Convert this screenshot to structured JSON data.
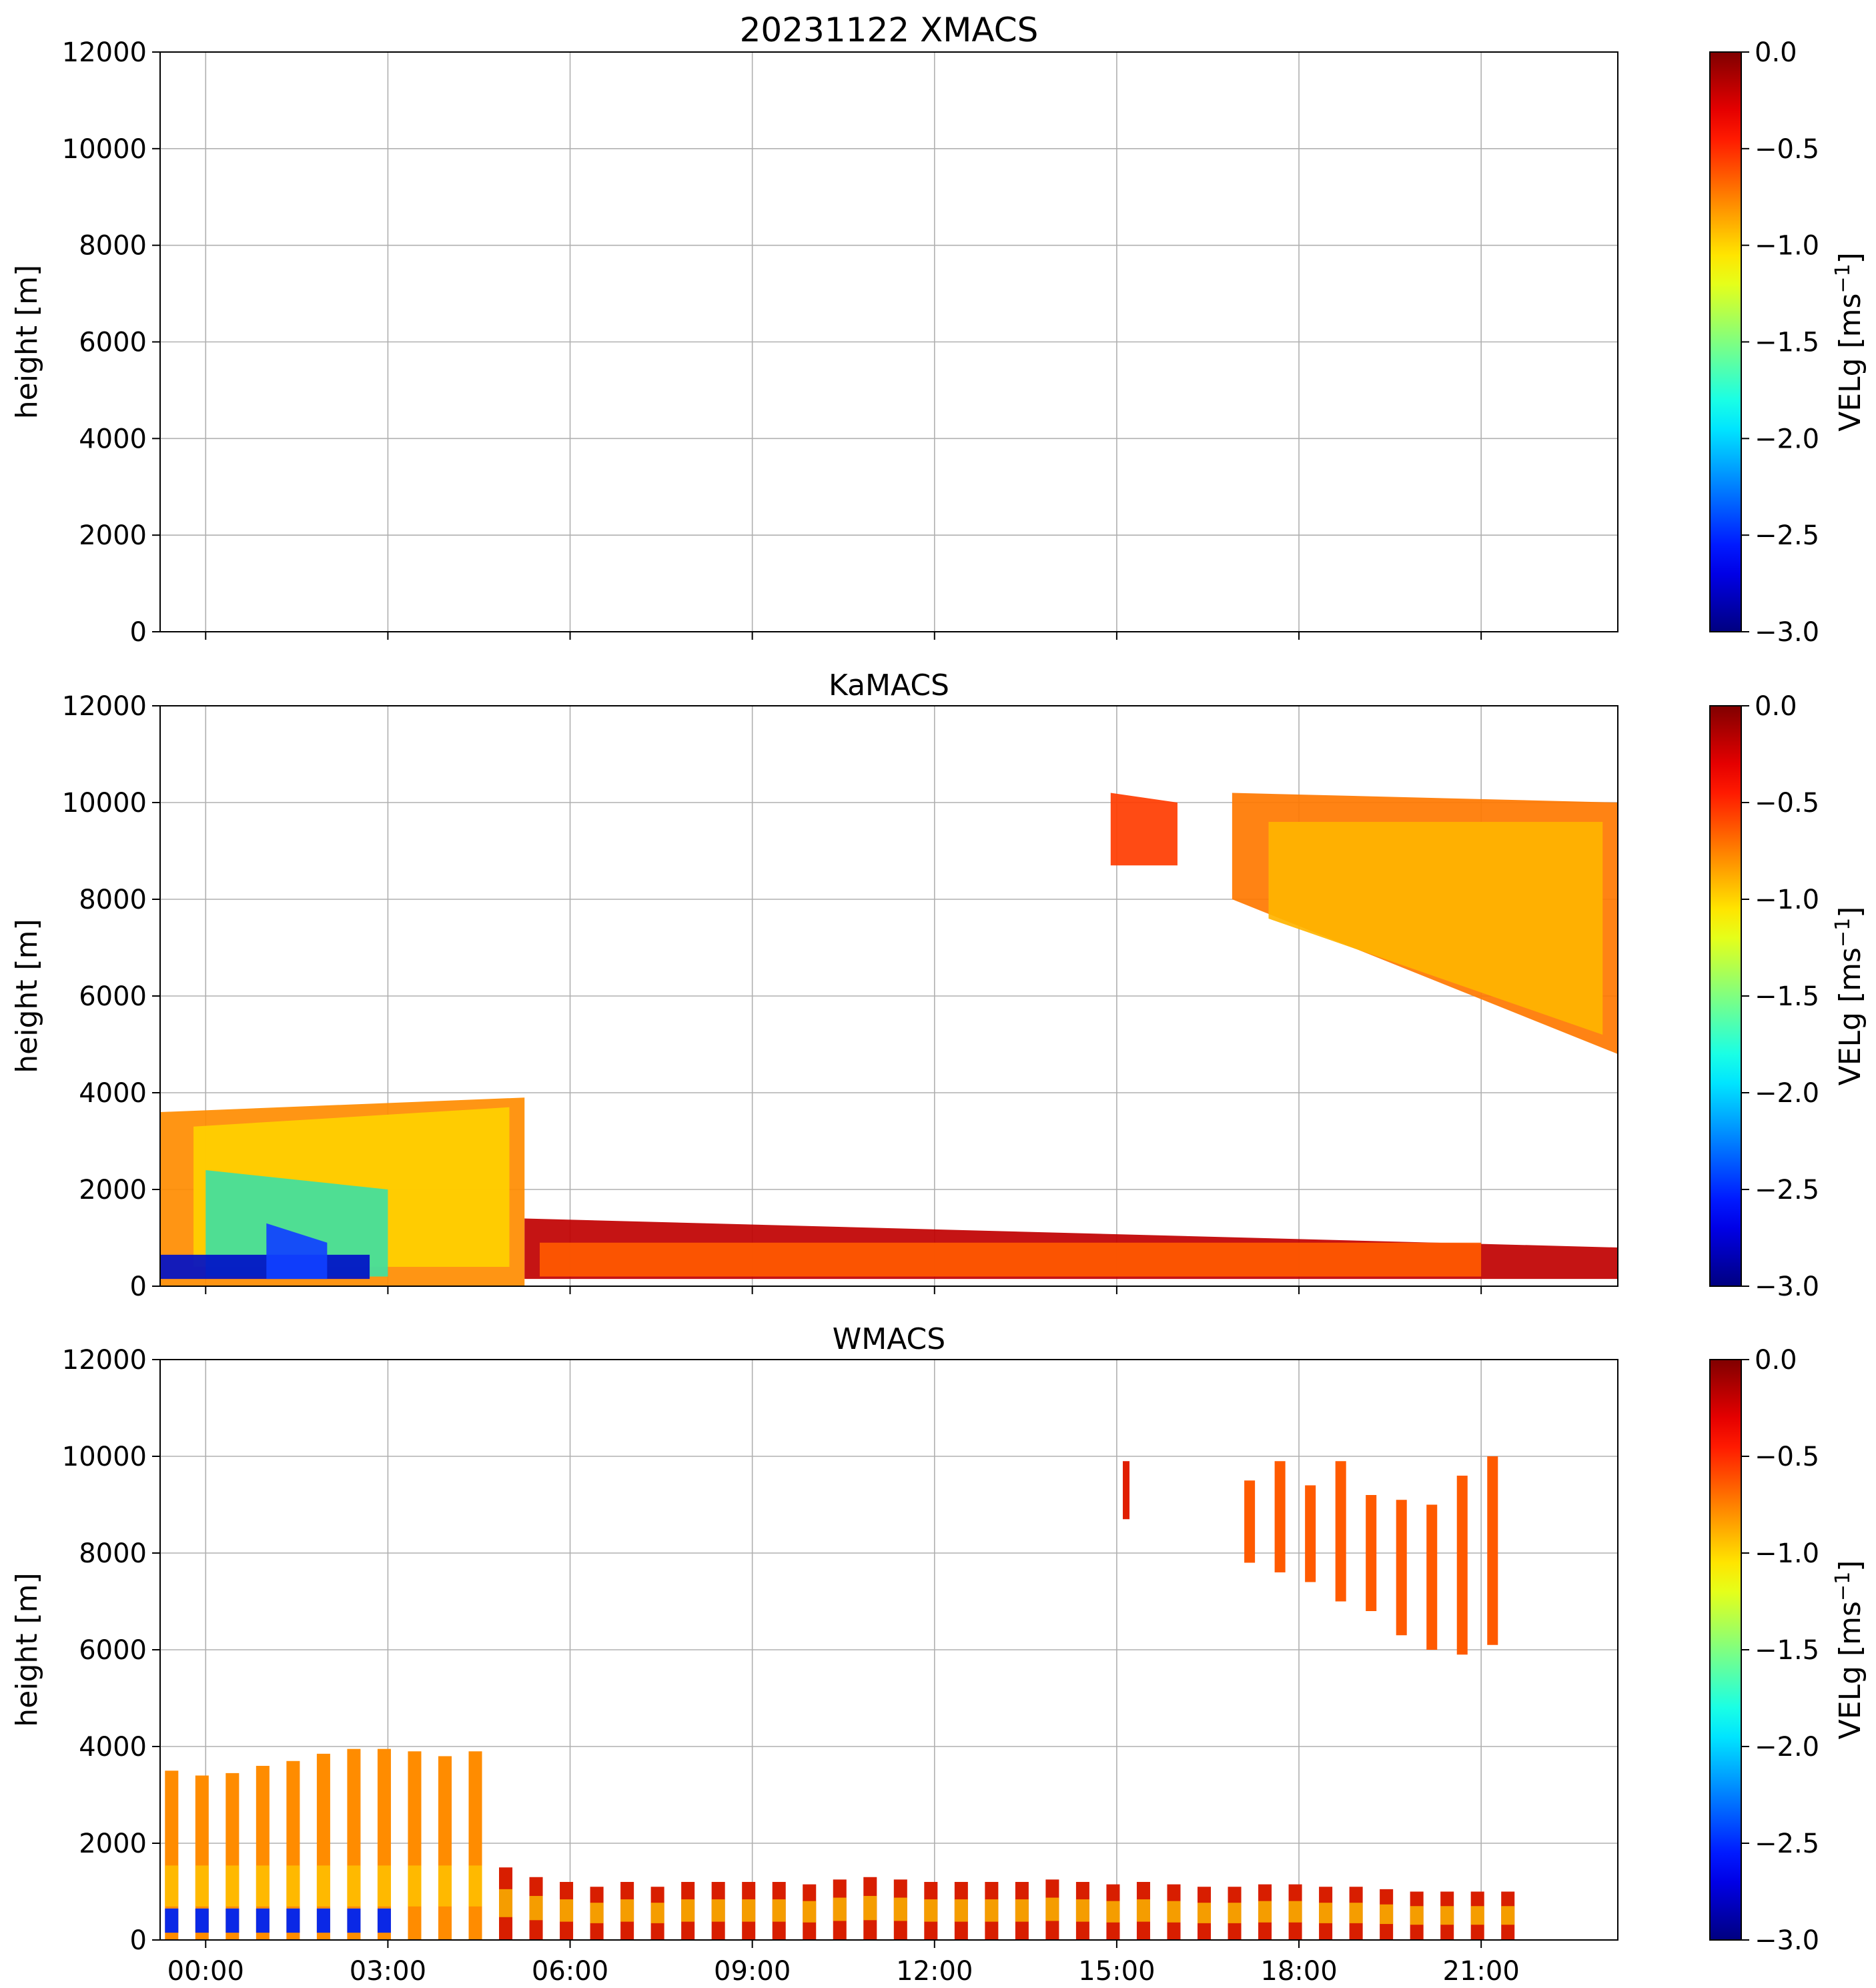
{
  "figure": {
    "title": "20231122 XMACS"
  },
  "chart_data": [
    {
      "type": "heatmap",
      "title": "20231122 XMACS",
      "ylabel": "height [m]",
      "ylim": [
        0,
        12000
      ],
      "yticks": [
        "0",
        "2000",
        "4000",
        "6000",
        "8000",
        "10000",
        "12000"
      ],
      "xlim": [
        -0.75,
        23.25
      ],
      "xticks": [
        0,
        3,
        6,
        9,
        12,
        15,
        18,
        21
      ],
      "xticklabels": [
        "00:00",
        "03:00",
        "06:00",
        "09:00",
        "12:00",
        "15:00",
        "18:00",
        "21:00"
      ],
      "show_xticklabels": false,
      "grid": true,
      "colorbar": {
        "label": "VELg [ms",
        "label_sup": "−1",
        "label_end": "]",
        "range": [
          -3.0,
          0.0
        ],
        "ticks": [
          "0.0",
          "−0.5",
          "−1.0",
          "−1.5",
          "−2.0",
          "−2.5",
          "−3.0"
        ]
      },
      "regions": []
    },
    {
      "type": "heatmap",
      "title": "KaMACS",
      "ylabel": "height [m]",
      "ylim": [
        0,
        12000
      ],
      "yticks": [
        "0",
        "2000",
        "4000",
        "6000",
        "8000",
        "10000",
        "12000"
      ],
      "xlim": [
        -0.75,
        23.25
      ],
      "xticks": [
        0,
        3,
        6,
        9,
        12,
        15,
        18,
        21
      ],
      "xticklabels": [
        "00:00",
        "03:00",
        "06:00",
        "09:00",
        "12:00",
        "15:00",
        "18:00",
        "21:00"
      ],
      "show_xticklabels": false,
      "grid": true,
      "colorbar": {
        "label": "VELg [ms",
        "label_sup": "−1",
        "label_end": "]",
        "range": [
          -3.0,
          0.0
        ],
        "ticks": [
          "0.0",
          "−0.5",
          "−1.0",
          "−1.5",
          "−2.0",
          "−2.5",
          "−3.0"
        ]
      },
      "regions": [
        {
          "name": "low-cloud-mixed",
          "t0": -0.75,
          "t1": 5.25,
          "base": 0,
          "top": 3600,
          "topEnd": 3900,
          "color": "#ff8c00"
        },
        {
          "name": "low-cloud-yellow",
          "t0": -0.2,
          "t1": 5.0,
          "base": 400,
          "top": 3300,
          "topEnd": 3700,
          "color": "#ffd000"
        },
        {
          "name": "low-cloud-green",
          "t0": 0.0,
          "t1": 3.0,
          "base": 200,
          "top": 2400,
          "topEnd": 2000,
          "color": "#40e0a0"
        },
        {
          "name": "low-cloud-blue",
          "t0": -0.75,
          "t1": 2.7,
          "base": 150,
          "top": 650,
          "topEnd": 650,
          "color": "#0010c8"
        },
        {
          "name": "low-cloud-blue-bump",
          "t0": 1.0,
          "t1": 2.0,
          "base": 150,
          "top": 1300,
          "topEnd": 900,
          "color": "#1040ff"
        },
        {
          "name": "boundary-layer",
          "t0": 5.25,
          "t1": 23.25,
          "base": 150,
          "top": 1400,
          "topEnd": 800,
          "color": "#c00000"
        },
        {
          "name": "boundary-layer-orange",
          "t0": 5.5,
          "t1": 21.0,
          "base": 200,
          "top": 900,
          "topEnd": 900,
          "color": "#ff5a00"
        },
        {
          "name": "cirrus-small",
          "t0": 14.9,
          "t1": 16.0,
          "base": 8700,
          "top": 10200,
          "topEnd": 10000,
          "color": "#ff3c00"
        },
        {
          "name": "cirrus-main",
          "t0": 16.9,
          "t1": 23.25,
          "base": 8000,
          "top": 10200,
          "topEnd": 10000,
          "baseEnd": 4800,
          "color": "#ff7800"
        },
        {
          "name": "cirrus-core",
          "t0": 17.5,
          "t1": 23.0,
          "base": 7600,
          "top": 9600,
          "topEnd": 9600,
          "baseEnd": 5200,
          "color": "#ffb400"
        }
      ]
    },
    {
      "type": "heatmap",
      "title": "WMACS",
      "ylabel": "height [m]",
      "ylim": [
        0,
        12000
      ],
      "yticks": [
        "0",
        "2000",
        "4000",
        "6000",
        "8000",
        "10000",
        "12000"
      ],
      "xlim": [
        -0.75,
        23.25
      ],
      "xticks": [
        0,
        3,
        6,
        9,
        12,
        15,
        18,
        21
      ],
      "xticklabels": [
        "00:00",
        "03:00",
        "06:00",
        "09:00",
        "12:00",
        "15:00",
        "18:00",
        "21:00"
      ],
      "show_xticklabels": true,
      "grid": true,
      "colorbar": {
        "label": "VELg [ms",
        "label_sup": "−1",
        "label_end": "]",
        "range": [
          -3.0,
          0.0
        ],
        "ticks": [
          "0.0",
          "−0.5",
          "−1.0",
          "−1.5",
          "−2.0",
          "−2.5",
          "−3.0"
        ]
      },
      "stripes": {
        "start": -0.67,
        "end": 21.3,
        "period": 0.5,
        "width": 0.22,
        "low_tops": [
          3500,
          3400,
          3450,
          3600,
          3700,
          3850,
          3950,
          3950,
          3900,
          3800,
          3900,
          1500,
          1300,
          1200,
          1100,
          1200,
          1100,
          1200,
          1200,
          1200,
          1200,
          1150,
          1250,
          1300,
          1250,
          1200,
          1200,
          1200,
          1200,
          1250,
          1200,
          1150,
          1200,
          1150,
          1100,
          1100,
          1150,
          1150,
          1100,
          1100,
          1050,
          1000,
          1000,
          1000,
          1000
        ],
        "upper": [
          {
            "t": 17.1,
            "base": 7800,
            "top": 9500
          },
          {
            "t": 17.6,
            "base": 7600,
            "top": 9900
          },
          {
            "t": 18.1,
            "base": 7400,
            "top": 9400
          },
          {
            "t": 18.6,
            "base": 7000,
            "top": 9900
          },
          {
            "t": 19.1,
            "base": 6800,
            "top": 9200
          },
          {
            "t": 19.6,
            "base": 6300,
            "top": 9100
          },
          {
            "t": 20.1,
            "base": 6000,
            "top": 9000
          },
          {
            "t": 20.6,
            "base": 5900,
            "top": 9600
          },
          {
            "t": 21.1,
            "base": 6100,
            "top": 10000
          }
        ],
        "upper_small": [
          {
            "t": 15.1,
            "base": 8700,
            "top": 9900
          }
        ]
      },
      "regions": []
    }
  ]
}
